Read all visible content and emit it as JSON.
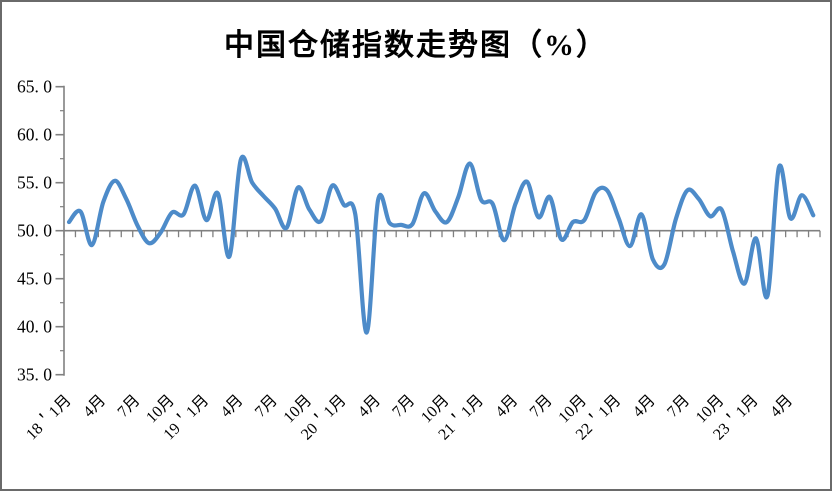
{
  "window": {
    "background": "#ffffff",
    "border_color": "#6a6a6a"
  },
  "chart": {
    "title": "中国仓储指数走势图（%）"
  },
  "chart_data": {
    "type": "line",
    "title": "中国仓储指数走势图（%）",
    "series_name": "中国仓储指数",
    "line_color": "#4d8bc9",
    "axis_color": "#808080",
    "label_color": "#000000",
    "grid": false,
    "legend": "none",
    "y_axis": {
      "min": 35.0,
      "max": 65.0,
      "major_step": 5.0,
      "minor_step": 2.5,
      "axis_crosses_at": 50.0,
      "tick_labels": [
        "65. 0",
        "60. 0",
        "55. 0",
        "50. 0",
        "45. 0",
        "40. 0",
        "35. 0"
      ]
    },
    "x_axis": {
      "months_per_point": 1,
      "label_every_n_points": 3,
      "tick_labels": [
        "18＇1月",
        "4月",
        "7月",
        "10月",
        "19＇1月",
        "4月",
        "7月",
        "10月",
        "20＇1月",
        "4月",
        "7月",
        "10月",
        "21＇1月",
        "4月",
        "7月",
        "10月",
        "22＇1月",
        "4月",
        "7月",
        "10月",
        "23＇1月",
        "4月"
      ]
    },
    "values": [
      50.9,
      52.0,
      48.5,
      53.0,
      55.2,
      53.3,
      50.5,
      48.7,
      49.8,
      51.9,
      51.7,
      54.7,
      51.1,
      53.9,
      47.3,
      57.4,
      55.0,
      53.6,
      52.3,
      50.3,
      54.5,
      52.2,
      51.0,
      54.7,
      52.7,
      51.7,
      39.4,
      53.2,
      50.8,
      50.6,
      50.7,
      53.9,
      52.0,
      50.9,
      53.5,
      57.0,
      53.2,
      52.8,
      49.0,
      52.8,
      55.1,
      51.4,
      53.5,
      49.1,
      50.9,
      51.1,
      54.0,
      54.2,
      51.3,
      48.4,
      51.7,
      47.0,
      46.5,
      51.2,
      54.2,
      53.3,
      51.5,
      52.2,
      47.8,
      44.5,
      49.2,
      43.2,
      56.6,
      51.3,
      53.7,
      51.6
    ]
  }
}
